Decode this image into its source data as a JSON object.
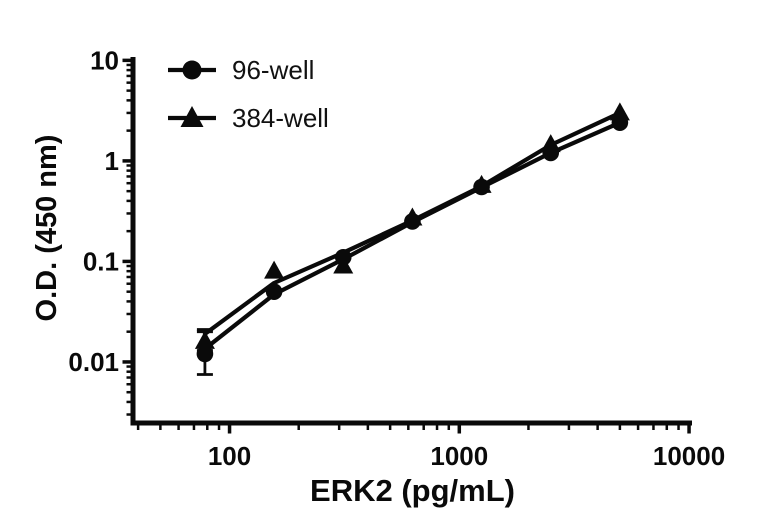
{
  "figure": {
    "background_color": "#ffffff",
    "ink_color": "#0a0a0a"
  },
  "chart_data": {
    "type": "scatter",
    "subtype": "log-log standard curve with fit lines",
    "title": "",
    "xlabel": "ERK2 (pg/mL)",
    "ylabel": "O.D. (450 nm)",
    "grid": "off",
    "x_axis": {
      "scale": "log",
      "min": 38,
      "max": 10300,
      "major_ticks": [
        {
          "value": 100,
          "label": "100"
        },
        {
          "value": 1000,
          "label": "1000"
        },
        {
          "value": 10000,
          "label": "10000"
        }
      ]
    },
    "y_axis": {
      "scale": "log",
      "min": 0.00247,
      "max": 10.8,
      "major_ticks": [
        {
          "value": 10,
          "label": "10"
        },
        {
          "value": 1,
          "label": "1"
        },
        {
          "value": 0.1,
          "label": "0.1"
        },
        {
          "value": 0.01,
          "label": "0.01"
        }
      ]
    },
    "series": [
      {
        "name": "96-well",
        "marker": "circle",
        "color": "#0a0a0a",
        "points": [
          {
            "x": 78.125,
            "y": 0.012
          },
          {
            "x": 156.25,
            "y": 0.05
          },
          {
            "x": 312.5,
            "y": 0.11
          },
          {
            "x": 625,
            "y": 0.25
          },
          {
            "x": 1250,
            "y": 0.55
          },
          {
            "x": 2500,
            "y": 1.2
          },
          {
            "x": 5000,
            "y": 2.4
          }
        ],
        "error_bars": [
          {
            "x": 78.125,
            "low": 0.0075,
            "high": 0.02
          }
        ],
        "fit_line": [
          {
            "x": 78.125,
            "y": 0.0135
          },
          {
            "x": 156.25,
            "y": 0.047
          },
          {
            "x": 312.5,
            "y": 0.105
          },
          {
            "x": 625,
            "y": 0.245
          },
          {
            "x": 1250,
            "y": 0.545
          },
          {
            "x": 2500,
            "y": 1.2
          },
          {
            "x": 5000,
            "y": 2.4
          }
        ]
      },
      {
        "name": "384-well",
        "marker": "triangle",
        "color": "#0a0a0a",
        "points": [
          {
            "x": 78.125,
            "y": 0.016
          },
          {
            "x": 156.25,
            "y": 0.08
          },
          {
            "x": 312.5,
            "y": 0.09
          },
          {
            "x": 625,
            "y": 0.27
          },
          {
            "x": 1250,
            "y": 0.57
          },
          {
            "x": 2500,
            "y": 1.45
          },
          {
            "x": 5000,
            "y": 3.0
          }
        ],
        "error_bars": [
          {
            "x": 78.125,
            "low": 0.013,
            "high": 0.021
          }
        ],
        "fit_line": [
          {
            "x": 78.125,
            "y": 0.019
          },
          {
            "x": 156.25,
            "y": 0.061
          },
          {
            "x": 312.5,
            "y": 0.122
          },
          {
            "x": 625,
            "y": 0.255
          },
          {
            "x": 1250,
            "y": 0.56
          },
          {
            "x": 2500,
            "y": 1.44
          },
          {
            "x": 5000,
            "y": 3.0
          }
        ]
      }
    ],
    "legend": {
      "position": "top-left-inside",
      "items": [
        {
          "label": "96-well",
          "marker": "circle"
        },
        {
          "label": "384-well",
          "marker": "triangle"
        }
      ]
    }
  }
}
